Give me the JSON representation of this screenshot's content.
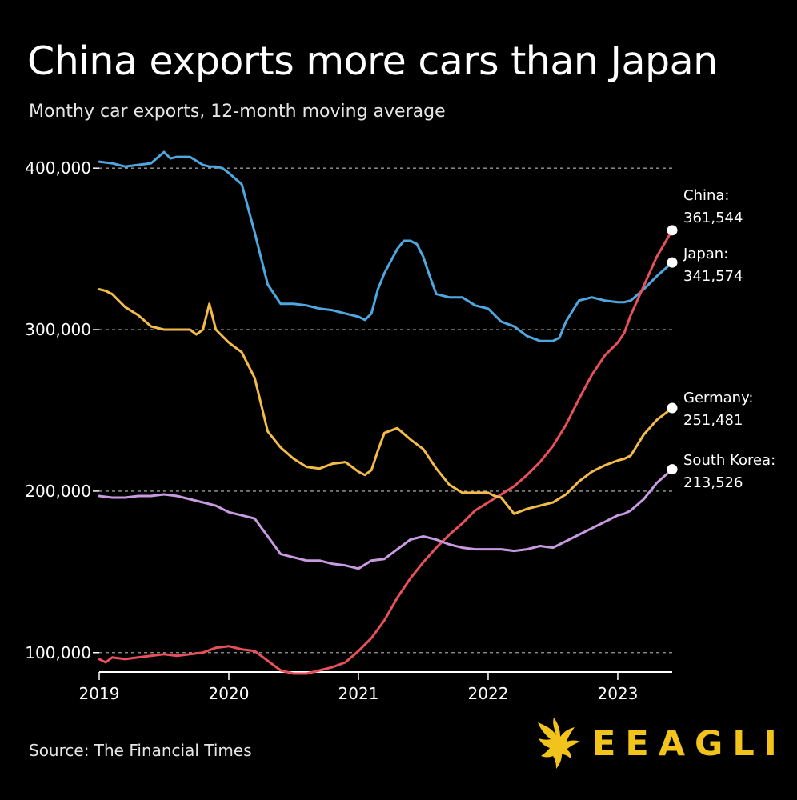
{
  "title": "China exports more cars than Japan",
  "subtitle": "Monthy car exports, 12-month moving average",
  "source": "Source: The Financial Times",
  "brand": {
    "name": "EEAGLI",
    "color": "#f2c31b",
    "logo_icon": "eagle-icon"
  },
  "colors": {
    "background": "#000000",
    "grid": "#9a9a9a",
    "axis": "#ffffff"
  },
  "chart_data": {
    "type": "line",
    "title": "China exports more cars than Japan",
    "subtitle": "Monthy car exports, 12-month moving average",
    "xlabel": "",
    "ylabel": "",
    "xlim": [
      2019.0,
      2023.42
    ],
    "ylim": [
      88000,
      410000
    ],
    "yticks": [
      100000,
      200000,
      300000,
      400000
    ],
    "ytick_labels": [
      "100,000",
      "200,000",
      "300,000",
      "400,000"
    ],
    "xticks": [
      2019,
      2020,
      2021,
      2022,
      2023
    ],
    "xtick_labels": [
      "2019",
      "2020",
      "2021",
      "2022",
      "2023"
    ],
    "grid": "horizontal dashed",
    "series": [
      {
        "name": "Japan",
        "color": "#4ea8df",
        "end_label": "Japan:",
        "end_value_label": "341,574",
        "x": [
          2019.0,
          2019.1,
          2019.2,
          2019.3,
          2019.4,
          2019.5,
          2019.55,
          2019.6,
          2019.7,
          2019.8,
          2019.85,
          2019.9,
          2019.95,
          2020.0,
          2020.1,
          2020.2,
          2020.3,
          2020.4,
          2020.5,
          2020.6,
          2020.7,
          2020.8,
          2020.9,
          2021.0,
          2021.05,
          2021.1,
          2021.15,
          2021.2,
          2021.3,
          2021.35,
          2021.4,
          2021.45,
          2021.5,
          2021.55,
          2021.6,
          2021.7,
          2021.8,
          2021.9,
          2022.0,
          2022.1,
          2022.2,
          2022.3,
          2022.4,
          2022.45,
          2022.5,
          2022.55,
          2022.6,
          2022.7,
          2022.8,
          2022.9,
          2023.0,
          2023.05,
          2023.1,
          2023.2,
          2023.3,
          2023.42
        ],
        "values": [
          404000,
          403000,
          401000,
          402000,
          403000,
          410000,
          406000,
          407000,
          407000,
          402000,
          401000,
          401000,
          400000,
          397000,
          390000,
          360000,
          328000,
          316000,
          316000,
          315000,
          313000,
          312000,
          310000,
          308000,
          306000,
          310000,
          325000,
          335000,
          350000,
          355000,
          355000,
          353000,
          345000,
          333000,
          322000,
          320000,
          320000,
          315000,
          313000,
          305000,
          302000,
          296000,
          293000,
          293000,
          293000,
          295000,
          305000,
          318000,
          320000,
          318000,
          317000,
          317000,
          318000,
          325000,
          333000,
          341574
        ]
      },
      {
        "name": "China",
        "color": "#e8515b",
        "end_label": "China:",
        "end_value_label": "361,544",
        "x": [
          2019.0,
          2019.05,
          2019.1,
          2019.2,
          2019.3,
          2019.4,
          2019.5,
          2019.6,
          2019.7,
          2019.8,
          2019.9,
          2020.0,
          2020.1,
          2020.2,
          2020.3,
          2020.4,
          2020.5,
          2020.6,
          2020.7,
          2020.8,
          2020.9,
          2021.0,
          2021.1,
          2021.2,
          2021.3,
          2021.4,
          2021.5,
          2021.6,
          2021.7,
          2021.8,
          2021.9,
          2022.0,
          2022.1,
          2022.2,
          2022.3,
          2022.4,
          2022.5,
          2022.6,
          2022.7,
          2022.8,
          2022.9,
          2023.0,
          2023.05,
          2023.1,
          2023.2,
          2023.3,
          2023.42
        ],
        "values": [
          96000,
          94000,
          97000,
          96000,
          97000,
          98000,
          99000,
          98000,
          99000,
          100000,
          103000,
          104000,
          102000,
          101000,
          95000,
          89000,
          87000,
          87000,
          89000,
          91000,
          94000,
          101000,
          109000,
          120000,
          134000,
          146000,
          156000,
          165000,
          173000,
          180000,
          188000,
          193000,
          198000,
          203000,
          210000,
          218000,
          228000,
          241000,
          257000,
          272000,
          284000,
          292000,
          298000,
          309000,
          327000,
          345000,
          361544
        ]
      },
      {
        "name": "Germany",
        "color": "#f2bb4a",
        "end_label": "Germany:",
        "end_value_label": "251,481",
        "x": [
          2019.0,
          2019.05,
          2019.1,
          2019.2,
          2019.3,
          2019.4,
          2019.5,
          2019.6,
          2019.7,
          2019.75,
          2019.8,
          2019.85,
          2019.9,
          2020.0,
          2020.1,
          2020.2,
          2020.3,
          2020.4,
          2020.5,
          2020.6,
          2020.7,
          2020.8,
          2020.9,
          2021.0,
          2021.05,
          2021.1,
          2021.15,
          2021.2,
          2021.3,
          2021.4,
          2021.5,
          2021.6,
          2021.7,
          2021.8,
          2021.9,
          2022.0,
          2022.05,
          2022.1,
          2022.15,
          2022.2,
          2022.3,
          2022.4,
          2022.5,
          2022.6,
          2022.7,
          2022.8,
          2022.9,
          2023.0,
          2023.05,
          2023.1,
          2023.2,
          2023.3,
          2023.42
        ],
        "values": [
          325000,
          324000,
          322000,
          314000,
          309000,
          302000,
          300000,
          300000,
          300000,
          297000,
          300000,
          316000,
          300000,
          292000,
          286000,
          270000,
          237000,
          227000,
          220000,
          215000,
          214000,
          217000,
          218000,
          212000,
          210000,
          213000,
          225000,
          236000,
          239000,
          232000,
          226000,
          214000,
          204000,
          199000,
          199000,
          199000,
          197000,
          196000,
          191000,
          186000,
          189000,
          191000,
          193000,
          198000,
          206000,
          212000,
          216000,
          219000,
          220000,
          222000,
          235000,
          244000,
          251481
        ]
      },
      {
        "name": "South Korea",
        "color": "#c89ae0",
        "end_label": "South Korea:",
        "end_value_label": "213,526",
        "x": [
          2019.0,
          2019.1,
          2019.2,
          2019.3,
          2019.4,
          2019.5,
          2019.6,
          2019.7,
          2019.8,
          2019.9,
          2020.0,
          2020.1,
          2020.2,
          2020.3,
          2020.4,
          2020.5,
          2020.6,
          2020.7,
          2020.8,
          2020.9,
          2021.0,
          2021.1,
          2021.2,
          2021.3,
          2021.4,
          2021.5,
          2021.6,
          2021.7,
          2021.8,
          2021.9,
          2022.0,
          2022.1,
          2022.2,
          2022.3,
          2022.4,
          2022.5,
          2022.6,
          2022.7,
          2022.8,
          2022.9,
          2023.0,
          2023.05,
          2023.1,
          2023.2,
          2023.3,
          2023.42
        ],
        "values": [
          197000,
          196000,
          196000,
          197000,
          197000,
          198000,
          197000,
          195000,
          193000,
          191000,
          187000,
          185000,
          183000,
          172000,
          161000,
          159000,
          157000,
          157000,
          155000,
          154000,
          152000,
          157000,
          158000,
          164000,
          170000,
          172000,
          170000,
          167000,
          165000,
          164000,
          164000,
          164000,
          163000,
          164000,
          166000,
          165000,
          169000,
          173000,
          177000,
          181000,
          185000,
          186000,
          188000,
          195000,
          205000,
          213526
        ]
      }
    ]
  }
}
